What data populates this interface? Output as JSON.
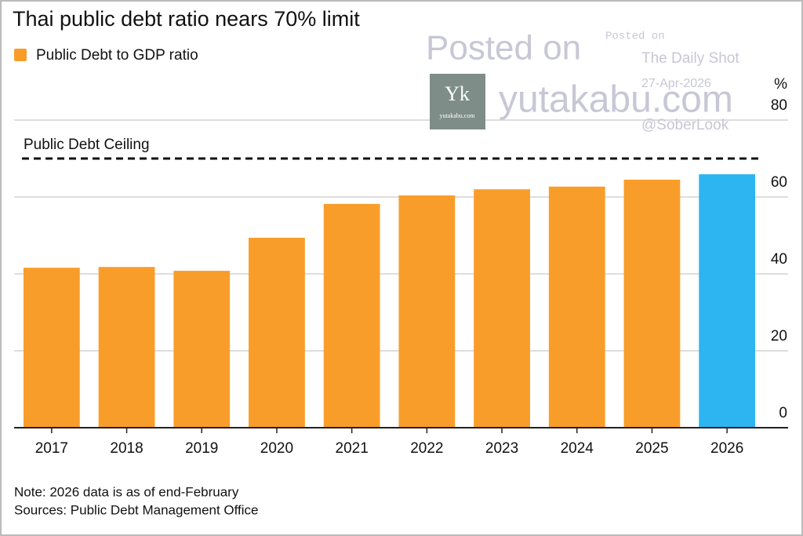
{
  "chart_data": {
    "type": "bar",
    "title": "Thai public debt ratio nears 70% limit",
    "legend": "Public Debt to GDP ratio",
    "y_unit": "%",
    "categories": [
      "2017",
      "2018",
      "2019",
      "2020",
      "2021",
      "2022",
      "2023",
      "2024",
      "2025",
      "2026"
    ],
    "values": [
      41.6,
      41.8,
      40.8,
      49.4,
      58.2,
      60.4,
      62.0,
      62.7,
      64.5,
      65.9
    ],
    "colors": [
      "#f99d2a",
      "#f99d2a",
      "#f99d2a",
      "#f99d2a",
      "#f99d2a",
      "#f99d2a",
      "#f99d2a",
      "#f99d2a",
      "#f99d2a",
      "#2cb5f0"
    ],
    "legend_color": "#f99d2a",
    "ylim": [
      0,
      80
    ],
    "yticks": [
      0,
      20,
      40,
      60,
      80
    ],
    "grid": true,
    "reference_line": {
      "value": 70,
      "label": "Public Debt Ceiling"
    },
    "notes": [
      "Note: 2026 data is as of end-February",
      "Sources: Public Debt Management Office"
    ]
  },
  "watermark": {
    "posted": "Posted on",
    "site": "yutakabu.com",
    "logo": "Yk",
    "logo_sub": "yutakabu.com",
    "small_posted": "Posted on",
    "source": "The Daily Shot",
    "date": "27-Apr-2026",
    "handle": "@SoberLook"
  }
}
